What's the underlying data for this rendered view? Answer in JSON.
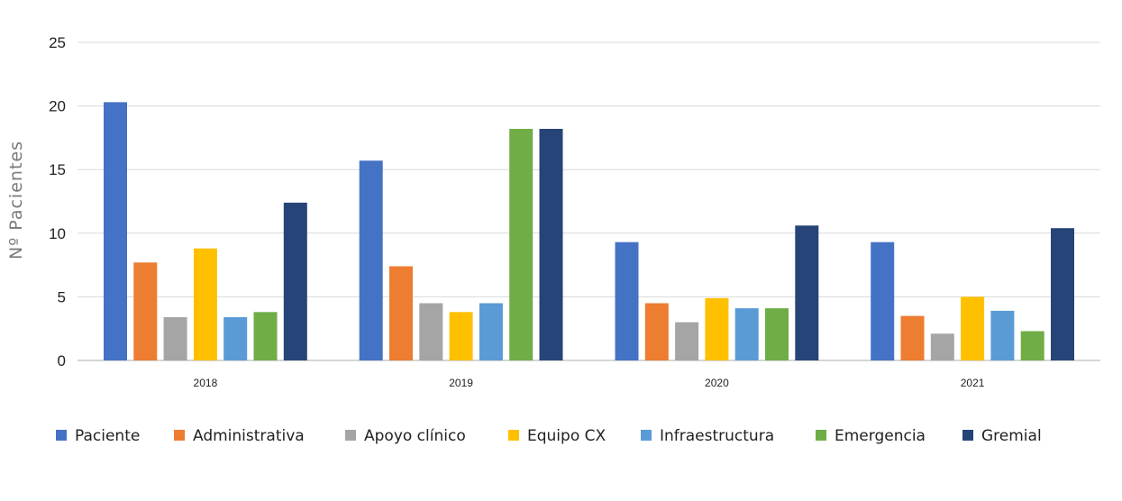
{
  "chart_data": {
    "type": "bar",
    "ylabel": "Nº Pacientes",
    "xlabel": "",
    "title": "",
    "ylim": [
      0,
      25
    ],
    "yticks": [
      0,
      5,
      10,
      15,
      20,
      25
    ],
    "grid": true,
    "legend_position": "bottom",
    "categories": [
      "2018",
      "2019",
      "2020",
      "2021"
    ],
    "series": [
      {
        "name": "Paciente",
        "color": "#4472c4",
        "values": [
          20.3,
          15.7,
          9.3,
          9.3
        ]
      },
      {
        "name": "Administrativa",
        "color": "#ed7d31",
        "values": [
          7.7,
          7.4,
          4.5,
          3.5
        ]
      },
      {
        "name": "Apoyo clínico",
        "color": "#a5a5a5",
        "values": [
          3.4,
          4.5,
          3.0,
          2.1
        ]
      },
      {
        "name": "Equipo CX",
        "color": "#ffc000",
        "values": [
          8.8,
          3.8,
          4.9,
          5.0
        ]
      },
      {
        "name": "Infraestructura",
        "color": "#5b9bd5",
        "values": [
          3.4,
          4.5,
          4.1,
          3.9
        ]
      },
      {
        "name": "Emergencia",
        "color": "#70ad47",
        "values": [
          3.8,
          18.2,
          4.1,
          2.3
        ]
      },
      {
        "name": "Gremial",
        "color": "#264478",
        "values": [
          12.4,
          18.2,
          10.6,
          10.4
        ]
      }
    ]
  }
}
